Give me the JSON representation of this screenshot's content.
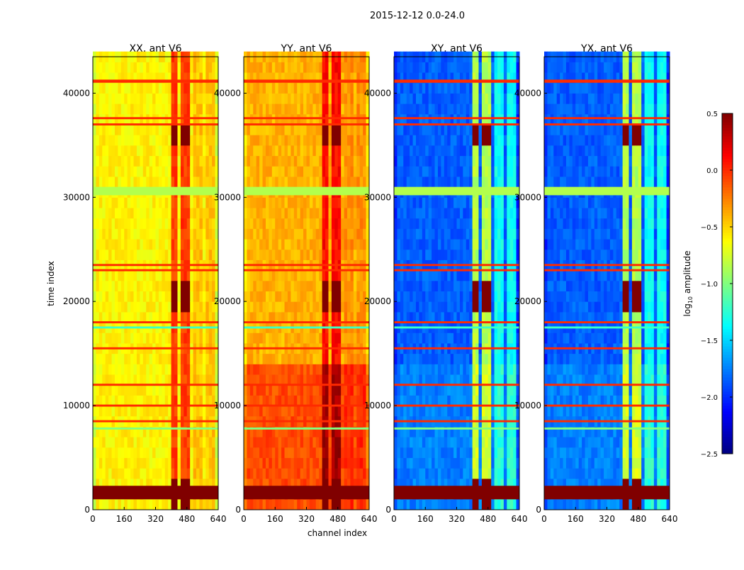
{
  "chart_data": {
    "type": "heatmap",
    "title": "2015-12-12 0.0-24.0",
    "xlabel": "channel index",
    "ylabel": "time index",
    "xlim": [
      0,
      640
    ],
    "ylim": [
      0,
      43500
    ],
    "xticks": [
      "0",
      "160",
      "320",
      "480",
      "640"
    ],
    "yticks": [
      "0",
      "10000",
      "20000",
      "30000",
      "40000"
    ],
    "colorbar": {
      "label_main": "log",
      "label_sub": "10",
      "label_rest": " amplitude",
      "range": [
        -2.5,
        0.5
      ],
      "ticks": [
        "0.5",
        "0.0",
        "−0.5",
        "−1.0",
        "−1.5",
        "−2.0",
        "−2.5"
      ],
      "tick_values": [
        0.5,
        0.0,
        -0.5,
        -1.0,
        -1.5,
        -2.0,
        -2.5
      ],
      "colormap": "jet"
    },
    "panels": [
      {
        "title": "XX, ant V6",
        "base": -0.6,
        "low_base": -0.6,
        "band_boost": 0.55,
        "side_boost": 0.15
      },
      {
        "title": "YY, ant V6",
        "base": -0.4,
        "low_base": -0.1,
        "band_boost": 0.5,
        "side_boost": 0.1
      },
      {
        "title": "XY, ant V6",
        "base": -1.85,
        "low_base": -1.75,
        "band_boost": 1.0,
        "side_boost": 0.5
      },
      {
        "title": "YX, ant V6",
        "base": -1.85,
        "low_base": -1.75,
        "band_boost": 1.0,
        "side_boost": 0.5
      }
    ],
    "bright_channel_ranges": [
      [
        400,
        440
      ],
      [
        455,
        495
      ]
    ],
    "side_channel_ranges": [
      [
        520,
        560
      ],
      [
        580,
        620
      ]
    ],
    "saturated_time_ranges": [
      [
        0,
        3000
      ],
      [
        19000,
        22000
      ],
      [
        35000,
        37500
      ]
    ],
    "low_base_below_time": 14500,
    "flagged_rows": [
      {
        "t0": 1000,
        "t1": 2300,
        "value": 0.5
      },
      {
        "t0": 7700,
        "t1": 7900,
        "value": -1.0
      },
      {
        "t0": 8400,
        "t1": 8600,
        "value": 0.0
      },
      {
        "t0": 9900,
        "t1": 10100,
        "value": 0.0
      },
      {
        "t0": 11900,
        "t1": 12100,
        "value": 0.0
      },
      {
        "t0": 15400,
        "t1": 15600,
        "value": 0.0
      },
      {
        "t0": 17400,
        "t1": 17600,
        "value": -1.2
      },
      {
        "t0": 17900,
        "t1": 18100,
        "value": 0.0
      },
      {
        "t0": 22900,
        "t1": 23100,
        "value": 0.0
      },
      {
        "t0": 23400,
        "t1": 23600,
        "value": 0.0
      },
      {
        "t0": 30200,
        "t1": 31000,
        "value": -0.85
      },
      {
        "t0": 36900,
        "t1": 37100,
        "value": 0.0
      },
      {
        "t0": 37500,
        "t1": 37700,
        "value": 0.0
      },
      {
        "t0": 41000,
        "t1": 41300,
        "value": 0.0
      }
    ]
  }
}
